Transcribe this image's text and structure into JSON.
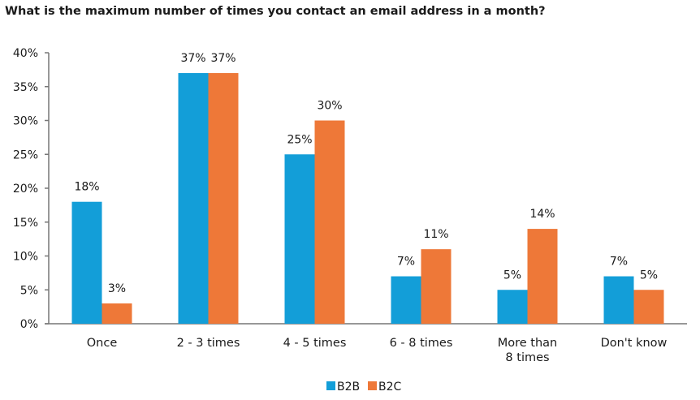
{
  "chart_data": {
    "type": "bar",
    "title": "What is the maximum number of times you contact an email address in a month?",
    "categories": [
      [
        "Once"
      ],
      [
        "2 - 3 times"
      ],
      [
        "4 - 5 times"
      ],
      [
        "6 - 8 times"
      ],
      [
        "More than",
        "8 times"
      ],
      [
        "Don't know"
      ]
    ],
    "series": [
      {
        "name": "B2B",
        "color": "#139ed8",
        "values": [
          18,
          37,
          25,
          7,
          5,
          7
        ],
        "labels": [
          "18%",
          "37%",
          "25%",
          "7%",
          "5%",
          "7%"
        ]
      },
      {
        "name": "B2C",
        "color": "#ee7838",
        "values": [
          3,
          37,
          30,
          11,
          14,
          5
        ],
        "labels": [
          "3%",
          "37%",
          "30%",
          "11%",
          "14%",
          "5%"
        ]
      }
    ],
    "ylim": [
      0,
      40
    ],
    "yticks": [
      "0%",
      "5%",
      "10%",
      "15%",
      "20%",
      "25%",
      "30%",
      "35%",
      "40%"
    ],
    "grid": false,
    "legend": "bottom-right"
  }
}
